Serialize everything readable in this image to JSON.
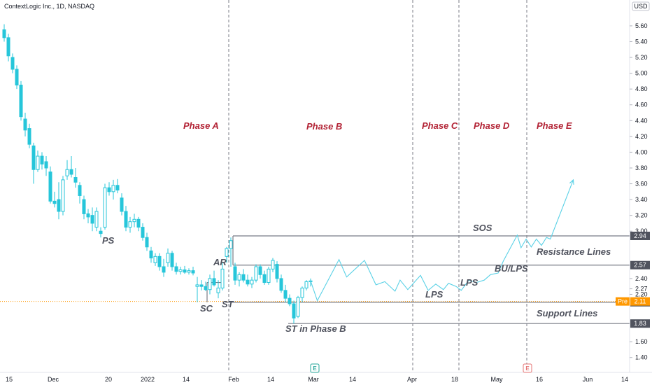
{
  "header": {
    "title": "ContextLogic Inc., 1D, NASDAQ",
    "currency": "USD"
  },
  "chart_data": {
    "type": "candlestick",
    "x_tick_labels": [
      "15",
      "Dec",
      "20",
      "2022",
      "14",
      "Feb",
      "14",
      "Mar",
      "14",
      "Apr",
      "18",
      "May",
      "16",
      "Jun",
      "14"
    ],
    "y_tick_labels": [
      "5.60",
      "5.40",
      "5.20",
      "5.00",
      "4.80",
      "4.60",
      "4.40",
      "4.20",
      "4.00",
      "3.80",
      "3.60",
      "3.40",
      "3.20",
      "3.00",
      "2.40",
      "2.27",
      "2.20",
      "1.60",
      "1.40"
    ],
    "ylim": [
      1.3,
      5.75
    ],
    "candles": [
      {
        "o": 5.55,
        "h": 5.62,
        "l": 5.4,
        "c": 5.45
      },
      {
        "o": 5.45,
        "h": 5.5,
        "l": 5.15,
        "c": 5.22
      },
      {
        "o": 5.2,
        "h": 5.25,
        "l": 5.0,
        "c": 5.05
      },
      {
        "o": 5.05,
        "h": 5.1,
        "l": 4.8,
        "c": 4.85
      },
      {
        "o": 4.85,
        "h": 4.9,
        "l": 4.4,
        "c": 4.45
      },
      {
        "o": 4.42,
        "h": 4.5,
        "l": 4.2,
        "c": 4.28
      },
      {
        "o": 4.3,
        "h": 4.36,
        "l": 4.05,
        "c": 4.1
      },
      {
        "o": 4.08,
        "h": 4.12,
        "l": 3.6,
        "c": 3.78
      },
      {
        "o": 3.78,
        "h": 4.02,
        "l": 3.75,
        "c": 3.95
      },
      {
        "o": 3.95,
        "h": 4.0,
        "l": 3.78,
        "c": 3.85
      },
      {
        "o": 3.88,
        "h": 3.95,
        "l": 3.7,
        "c": 3.8
      },
      {
        "o": 3.75,
        "h": 3.82,
        "l": 3.35,
        "c": 3.38
      },
      {
        "o": 3.38,
        "h": 3.5,
        "l": 3.3,
        "c": 3.35
      },
      {
        "o": 3.4,
        "h": 3.62,
        "l": 3.15,
        "c": 3.25
      },
      {
        "o": 3.25,
        "h": 3.7,
        "l": 3.2,
        "c": 3.65
      },
      {
        "o": 3.7,
        "h": 3.9,
        "l": 3.65,
        "c": 3.78
      },
      {
        "o": 3.78,
        "h": 3.95,
        "l": 3.68,
        "c": 3.72
      },
      {
        "o": 3.68,
        "h": 3.8,
        "l": 3.55,
        "c": 3.62
      },
      {
        "o": 3.58,
        "h": 3.62,
        "l": 3.35,
        "c": 3.45
      },
      {
        "o": 3.4,
        "h": 3.45,
        "l": 3.15,
        "c": 3.22
      },
      {
        "o": 3.22,
        "h": 3.28,
        "l": 3.1,
        "c": 3.18
      },
      {
        "o": 3.2,
        "h": 3.3,
        "l": 3.0,
        "c": 3.1
      },
      {
        "o": 3.05,
        "h": 3.3,
        "l": 3.0,
        "c": 3.25
      },
      {
        "o": 3.0,
        "h": 3.05,
        "l": 2.92,
        "c": 2.97
      },
      {
        "o": 3.05,
        "h": 3.6,
        "l": 3.02,
        "c": 3.55
      },
      {
        "o": 3.55,
        "h": 3.62,
        "l": 3.45,
        "c": 3.5
      },
      {
        "o": 3.5,
        "h": 3.65,
        "l": 3.4,
        "c": 3.58
      },
      {
        "o": 3.58,
        "h": 3.66,
        "l": 3.48,
        "c": 3.52
      },
      {
        "o": 3.42,
        "h": 3.48,
        "l": 3.2,
        "c": 3.25
      },
      {
        "o": 3.25,
        "h": 3.32,
        "l": 3.0,
        "c": 3.05
      },
      {
        "o": 3.05,
        "h": 3.18,
        "l": 2.98,
        "c": 3.12
      },
      {
        "o": 3.12,
        "h": 3.22,
        "l": 3.05,
        "c": 3.15
      },
      {
        "o": 3.15,
        "h": 3.18,
        "l": 3.0,
        "c": 3.05
      },
      {
        "o": 3.05,
        "h": 3.1,
        "l": 2.88,
        "c": 2.92
      },
      {
        "o": 2.92,
        "h": 2.98,
        "l": 2.75,
        "c": 2.8
      },
      {
        "o": 2.75,
        "h": 2.8,
        "l": 2.6,
        "c": 2.66
      },
      {
        "o": 2.6,
        "h": 2.72,
        "l": 2.56,
        "c": 2.68
      },
      {
        "o": 2.68,
        "h": 2.72,
        "l": 2.5,
        "c": 2.55
      },
      {
        "o": 2.55,
        "h": 2.65,
        "l": 2.42,
        "c": 2.48
      },
      {
        "o": 2.6,
        "h": 2.78,
        "l": 2.55,
        "c": 2.72
      },
      {
        "o": 2.72,
        "h": 2.75,
        "l": 2.5,
        "c": 2.55
      },
      {
        "o": 2.55,
        "h": 2.6,
        "l": 2.45,
        "c": 2.49
      },
      {
        "o": 2.49,
        "h": 2.55,
        "l": 2.45,
        "c": 2.51
      },
      {
        "o": 2.51,
        "h": 2.56,
        "l": 2.46,
        "c": 2.48
      },
      {
        "o": 2.48,
        "h": 2.53,
        "l": 2.45,
        "c": 2.5
      },
      {
        "o": 2.5,
        "h": 2.55,
        "l": 2.44,
        "c": 2.47
      },
      {
        "o": 2.3,
        "h": 2.42,
        "l": 2.1,
        "c": 2.32
      },
      {
        "o": 2.32,
        "h": 2.38,
        "l": 2.25,
        "c": 2.3
      },
      {
        "o": 2.3,
        "h": 2.36,
        "l": 2.24,
        "c": 2.26
      },
      {
        "o": 2.26,
        "h": 2.45,
        "l": 2.2,
        "c": 2.4
      },
      {
        "o": 2.4,
        "h": 2.5,
        "l": 2.3,
        "c": 2.32
      },
      {
        "o": 2.22,
        "h": 2.38,
        "l": 2.15,
        "c": 2.28
      },
      {
        "o": 2.28,
        "h": 2.6,
        "l": 2.25,
        "c": 2.52
      },
      {
        "o": 2.68,
        "h": 2.8,
        "l": 2.6,
        "c": 2.78
      },
      {
        "o": 2.78,
        "h": 2.92,
        "l": 2.55,
        "c": 2.88
      },
      {
        "o": 2.55,
        "h": 2.6,
        "l": 2.32,
        "c": 2.38
      },
      {
        "o": 2.38,
        "h": 2.48,
        "l": 2.3,
        "c": 2.45
      },
      {
        "o": 2.45,
        "h": 2.52,
        "l": 2.35,
        "c": 2.38
      },
      {
        "o": 2.38,
        "h": 2.45,
        "l": 2.3,
        "c": 2.33
      },
      {
        "o": 2.33,
        "h": 2.42,
        "l": 2.28,
        "c": 2.38
      },
      {
        "o": 2.38,
        "h": 2.58,
        "l": 2.35,
        "c": 2.55
      },
      {
        "o": 2.55,
        "h": 2.58,
        "l": 2.4,
        "c": 2.45
      },
      {
        "o": 2.45,
        "h": 2.5,
        "l": 2.32,
        "c": 2.35
      },
      {
        "o": 2.35,
        "h": 2.55,
        "l": 2.32,
        "c": 2.52
      },
      {
        "o": 2.52,
        "h": 2.66,
        "l": 2.48,
        "c": 2.63
      },
      {
        "o": 2.58,
        "h": 2.62,
        "l": 2.35,
        "c": 2.4
      },
      {
        "o": 2.4,
        "h": 2.45,
        "l": 2.22,
        "c": 2.25
      },
      {
        "o": 2.25,
        "h": 2.32,
        "l": 2.1,
        "c": 2.15
      },
      {
        "o": 2.15,
        "h": 2.2,
        "l": 2.05,
        "c": 2.08
      },
      {
        "o": 2.08,
        "h": 2.12,
        "l": 1.83,
        "c": 1.9
      },
      {
        "o": 1.92,
        "h": 2.18,
        "l": 1.9,
        "c": 2.16
      },
      {
        "o": 2.16,
        "h": 2.3,
        "l": 2.1,
        "c": 2.28
      },
      {
        "o": 2.28,
        "h": 2.38,
        "l": 2.25,
        "c": 2.36
      },
      {
        "o": 2.36,
        "h": 2.4,
        "l": 2.3,
        "c": 2.37
      }
    ],
    "projection_path": [
      [
        2.37,
        2.37
      ],
      [
        2.9,
        2.12
      ],
      [
        4.6,
        2.64
      ],
      [
        5.2,
        2.42
      ],
      [
        6.6,
        2.63
      ],
      [
        7.5,
        2.32
      ],
      [
        8.2,
        2.36
      ],
      [
        9.0,
        2.24
      ],
      [
        9.4,
        2.38
      ],
      [
        10.0,
        2.26
      ],
      [
        11.0,
        2.44
      ],
      [
        11.6,
        2.25
      ],
      [
        12.2,
        2.33
      ],
      [
        12.8,
        2.26
      ],
      [
        13.2,
        2.34
      ],
      [
        13.8,
        2.3
      ],
      [
        14.2,
        2.25
      ],
      [
        14.8,
        2.38
      ],
      [
        15.4,
        2.35
      ],
      [
        16.0,
        2.38
      ],
      [
        16.5,
        2.45
      ],
      [
        17.1,
        2.47
      ],
      [
        17.5,
        2.62
      ],
      [
        18.1,
        2.8
      ],
      [
        18.6,
        2.95
      ],
      [
        18.9,
        2.79
      ],
      [
        19.3,
        2.9
      ],
      [
        19.7,
        2.8
      ],
      [
        20.1,
        2.9
      ],
      [
        20.5,
        2.82
      ],
      [
        20.9,
        2.92
      ],
      [
        21.2,
        2.9
      ],
      [
        23.0,
        3.65
      ]
    ],
    "horizontal_lines": [
      {
        "value": 2.94,
        "tag": "2.94"
      },
      {
        "value": 2.57,
        "tag": "2.57"
      },
      {
        "value": 2.1,
        "tag": "2.10"
      },
      {
        "value": 1.83,
        "tag": "1.83"
      }
    ],
    "pre_line": {
      "value": 2.11,
      "tag_label": "Pre",
      "tag_value": "2.11"
    },
    "phases": [
      "Phase A",
      "Phase B",
      "Phase C",
      "Phase D",
      "Phase E"
    ],
    "annotations": [
      "PS",
      "SC",
      "AR",
      "ST",
      "ST in Phase B",
      "LPS",
      "LPS",
      "BU/LPS",
      "SOS",
      "Resistance Lines",
      "Support Lines"
    ],
    "event_markers": [
      "E",
      "E"
    ],
    "colors": {
      "up": "#26c6da",
      "down": "#26c6da",
      "projection": "#5ad1e6",
      "level_line": "#787b86",
      "tag_bg": "#50535e",
      "pre_bg": "#ff9800",
      "pre_line": "#ff9800",
      "phase": "#b22234"
    }
  }
}
